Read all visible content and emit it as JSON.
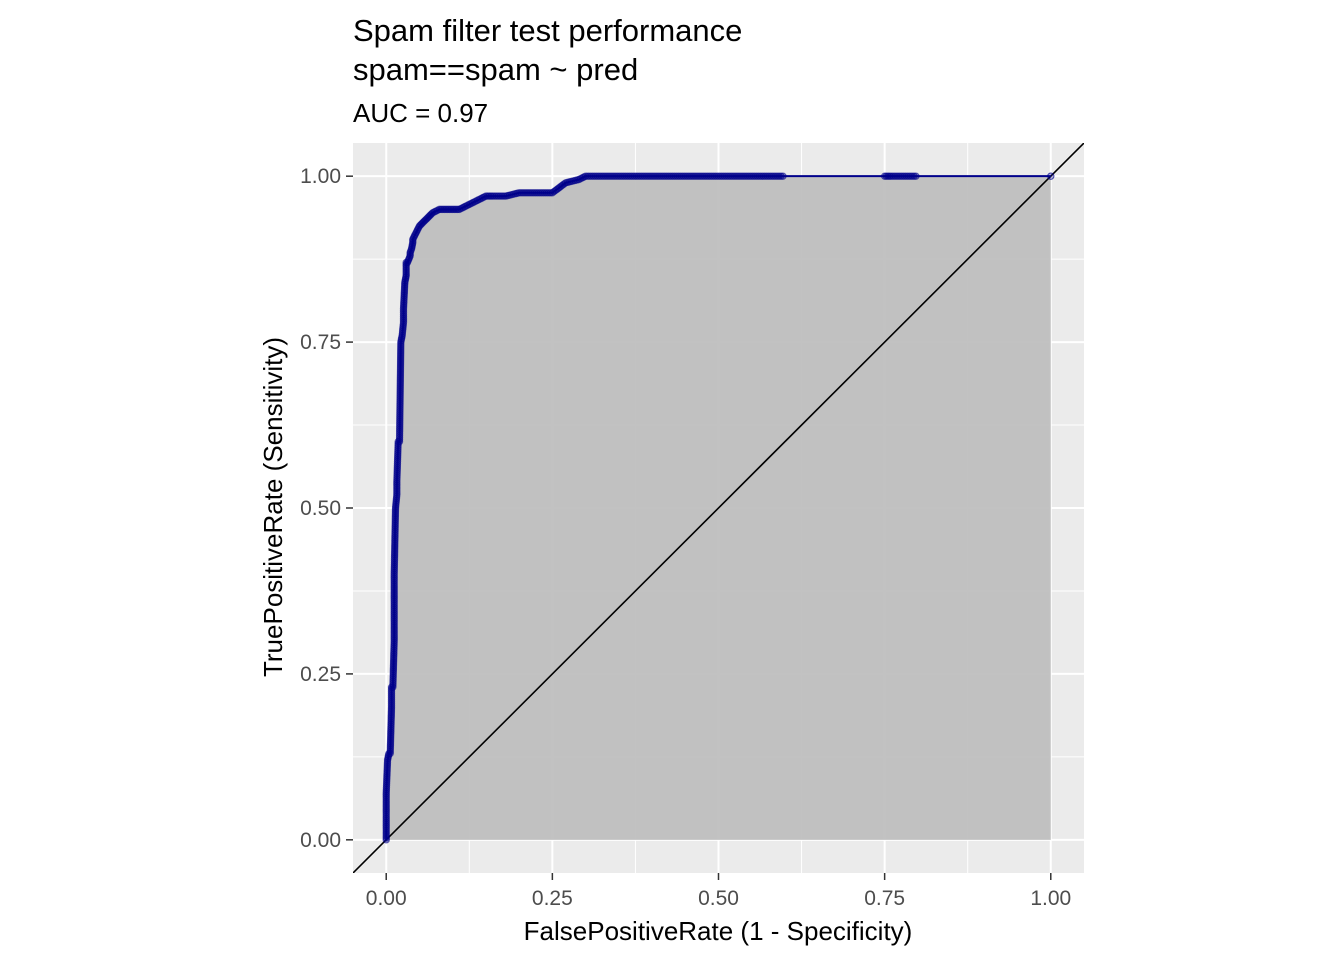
{
  "chart_data": {
    "type": "line",
    "title_lines": [
      "Spam filter test performance",
      "spam==spam ~ pred"
    ],
    "subtitle": "AUC = 0.97",
    "xlabel": "FalsePositiveRate (1 - Specificity)",
    "ylabel": "TruePositiveRate (Sensitivity)",
    "xlim": [
      -0.05,
      1.05
    ],
    "ylim": [
      -0.05,
      1.05
    ],
    "x_ticks": [
      0,
      0.25,
      0.5,
      0.75,
      1
    ],
    "x_tick_labels": [
      "0.00",
      "0.25",
      "0.50",
      "0.75",
      "1.00"
    ],
    "y_ticks": [
      0,
      0.25,
      0.5,
      0.75,
      1
    ],
    "y_tick_labels": [
      "0.00",
      "0.25",
      "0.50",
      "0.75",
      "1.00"
    ],
    "grid": true,
    "auc_area_shaded": true,
    "reference_line": "diagonal",
    "colors": {
      "panel": "#ebebeb",
      "grid": "#ffffff",
      "area": "#bdbdbd",
      "curve": "#00008b",
      "diagonal": "#000000"
    },
    "series": [
      {
        "x": [
          0,
          0,
          0.002,
          0.004,
          0.006,
          0.008,
          0.008,
          0.01,
          0.012,
          0.012,
          0.014,
          0.016,
          0.016,
          0.018,
          0.02,
          0.022,
          0.024,
          0.026,
          0.026,
          0.028,
          0.03,
          0.03,
          0.032,
          0.034,
          0.036,
          0.036,
          0.038,
          0.04,
          0.04,
          0.045,
          0.05,
          0.055,
          0.06,
          0.065,
          0.07,
          0.08,
          0.09,
          0.1,
          0.11,
          0.12,
          0.13,
          0.14,
          0.15,
          0.16,
          0.18,
          0.2,
          0.25,
          0.27,
          0.29,
          0.3,
          0.4,
          0.5,
          0.6,
          0.75,
          0.76,
          0.8,
          1.0
        ],
        "y": [
          0,
          0.07,
          0.12,
          0.13,
          0.13,
          0.2,
          0.23,
          0.23,
          0.3,
          0.4,
          0.5,
          0.52,
          0.54,
          0.6,
          0.6,
          0.75,
          0.76,
          0.78,
          0.8,
          0.84,
          0.85,
          0.87,
          0.87,
          0.875,
          0.88,
          0.885,
          0.89,
          0.9,
          0.905,
          0.915,
          0.925,
          0.93,
          0.935,
          0.94,
          0.945,
          0.95,
          0.95,
          0.95,
          0.95,
          0.955,
          0.96,
          0.965,
          0.97,
          0.97,
          0.97,
          0.975,
          0.975,
          0.99,
          0.995,
          1.0,
          1.0,
          1.0,
          1.0,
          1.0,
          1.0,
          1.0,
          1.0
        ]
      }
    ]
  }
}
